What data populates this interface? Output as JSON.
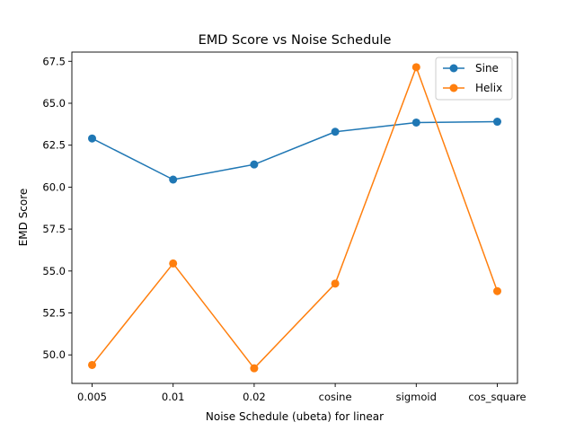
{
  "chart_data": {
    "type": "line",
    "title": "EMD Score vs Noise Schedule",
    "xlabel": "Noise Schedule (ubeta) for linear",
    "ylabel": "EMD Score",
    "categories": [
      "0.005",
      "0.01",
      "0.02",
      "cosine",
      "sigmoid",
      "cos_square"
    ],
    "series": [
      {
        "name": "Sine",
        "color": "#1f77b4",
        "marker": "circle",
        "values": [
          62.9,
          60.45,
          61.35,
          63.3,
          63.85,
          63.9
        ]
      },
      {
        "name": "Helix",
        "color": "#ff7f0e",
        "marker": "circle",
        "values": [
          49.4,
          55.45,
          49.2,
          54.25,
          67.15,
          53.8
        ]
      }
    ],
    "ylim": [
      48.3,
      68.05
    ],
    "yticks": [
      50.0,
      52.5,
      55.0,
      57.5,
      60.0,
      62.5,
      65.0,
      67.5
    ],
    "ytick_labels": [
      "50.0",
      "52.5",
      "55.0",
      "57.5",
      "60.0",
      "62.5",
      "65.0",
      "67.5"
    ],
    "grid": false,
    "legend_position": "top-right"
  }
}
